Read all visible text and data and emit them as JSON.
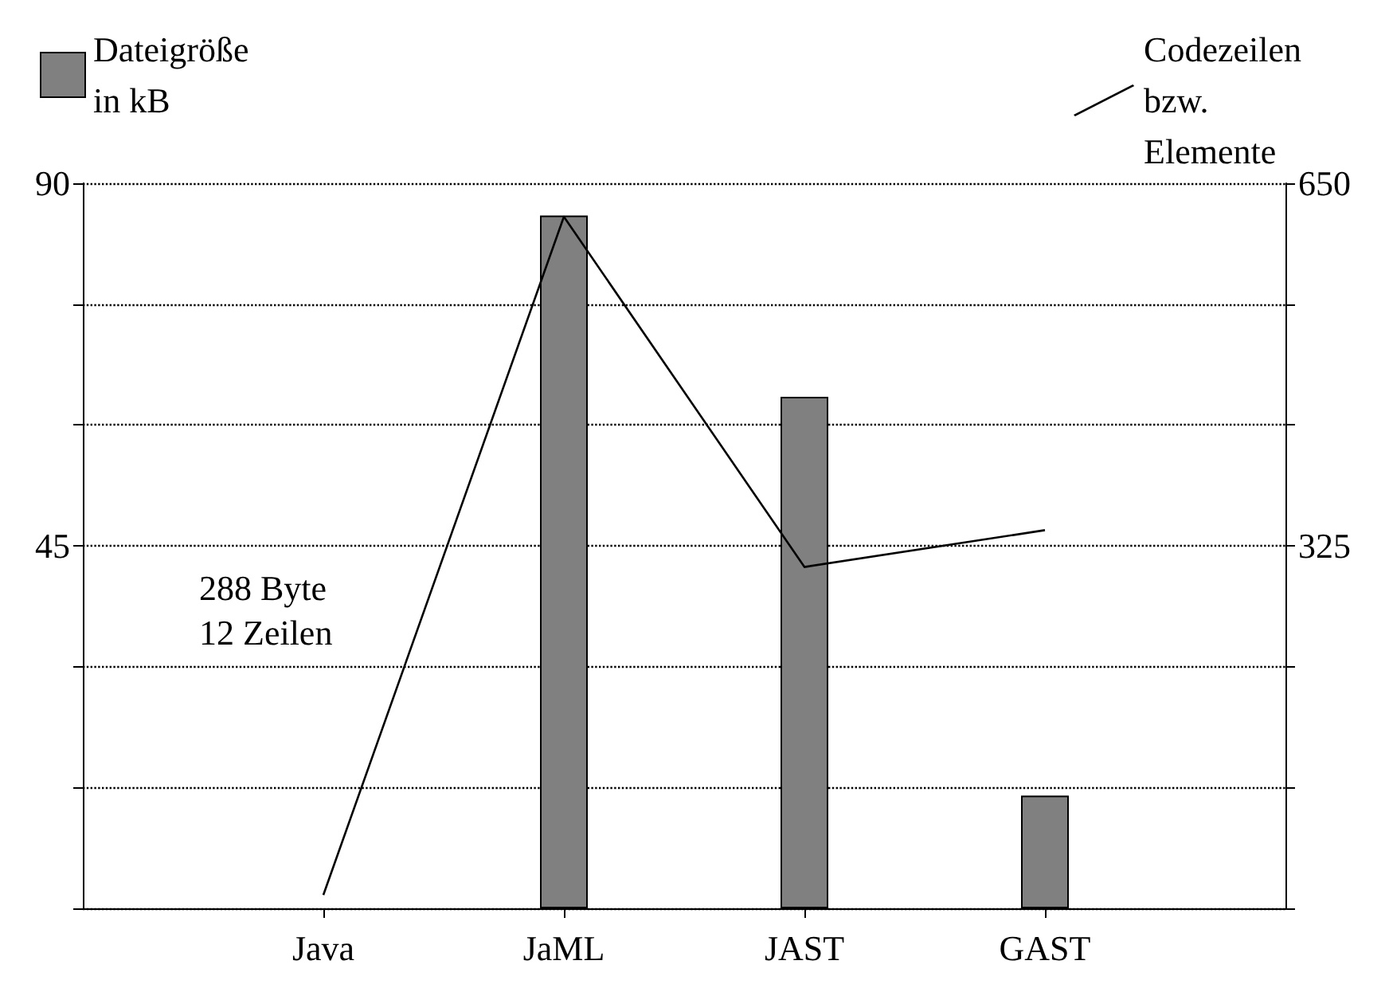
{
  "chart_data": {
    "type": "bar",
    "categories": [
      "Java",
      "JaML",
      "JAST",
      "GAST"
    ],
    "series": [
      {
        "name": "Dateigröße\nin kB",
        "color": "#808080",
        "values": [
          null,
          86,
          63.5,
          14
        ]
      },
      {
        "name": "Codezeilen\nbzw.\nElemente",
        "type": "line",
        "axis": "y2",
        "color": "#000000",
        "values": [
          12,
          620,
          306,
          339
        ]
      }
    ],
    "ylim": [
      0,
      90
    ],
    "yticks": [
      {
        "value": 0,
        "label": null
      },
      {
        "value": 15,
        "label": null
      },
      {
        "value": 30,
        "label": null
      },
      45,
      {
        "value": 60,
        "label": null
      },
      {
        "value": 75,
        "label": null
      },
      90
    ],
    "y2lim": [
      0,
      650
    ],
    "y2ticks": [
      {
        "value": 0,
        "label": null
      },
      {
        "value": 108.3,
        "label": null
      },
      {
        "value": 216.7,
        "label": null
      },
      325,
      {
        "value": 433.3,
        "label": null
      },
      {
        "value": 541.7,
        "label": null
      },
      650
    ],
    "annotations": [
      "288 Byte\n12 Zeilen"
    ],
    "grid": "y",
    "legend": "top",
    "marker": "none",
    "line_style": "solid"
  }
}
